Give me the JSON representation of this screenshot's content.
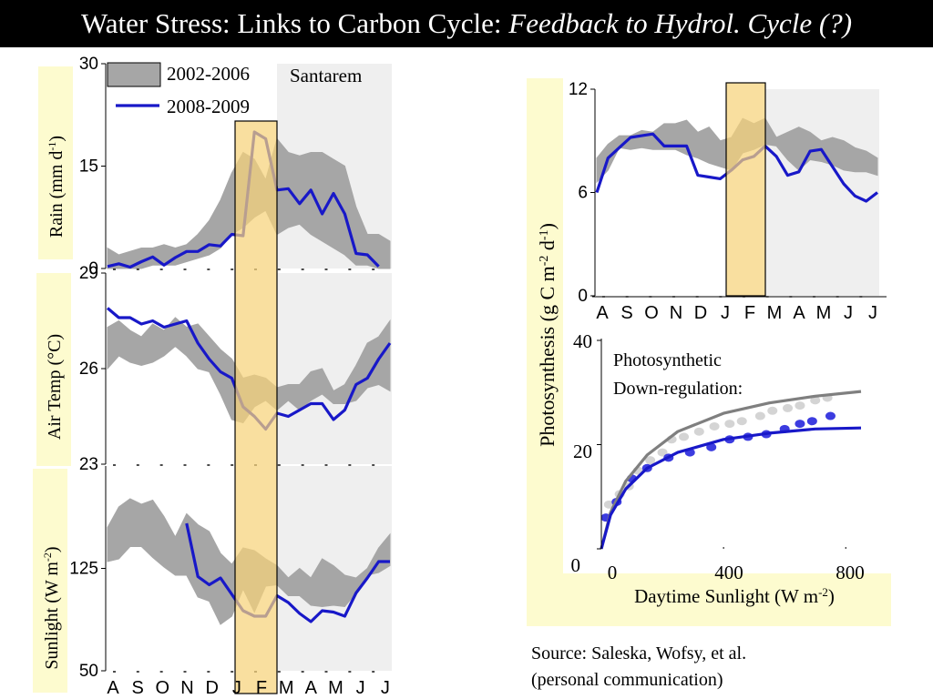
{
  "title": {
    "main": "Water Stress: Links to Carbon Cycle: ",
    "italic": "Feedback to Hydrol. Cycle (?)"
  },
  "legend": {
    "entries": [
      "2002-2006",
      "2008-2009"
    ],
    "site_label": "Santarem"
  },
  "colors": {
    "band": "#a6a6a6",
    "line": "#1818c8",
    "highlight": "#f7d27a",
    "label_bg": "#fdfbcf",
    "shade": "#efefef",
    "fit_gray": "#7f7f7f",
    "dot_gray": "#d4d4d4",
    "dot_blue": "#3c3ce0"
  },
  "source": {
    "line1": "Source: Saleska, Wofsy, et al.",
    "line2": "(personal communication)"
  },
  "chart_data": [
    {
      "id": "rain",
      "type": "area",
      "ylabel": "Rain (mm d-1)",
      "ylabel_parts": [
        "Rain (mm d",
        "-1",
        ")"
      ],
      "ylim": [
        0,
        30
      ],
      "yticks": [
        {
          "v": 30,
          "label": "30"
        },
        {
          "v": 15,
          "label": "15"
        },
        {
          "v": 0,
          "label": "0"
        }
      ],
      "x_labels": [],
      "x_step": 1,
      "x_count": 26,
      "series": [
        {
          "name": "2002-2006",
          "kind": "band",
          "upper": [
            3,
            2,
            2.5,
            3,
            3,
            3.5,
            3,
            3.5,
            5,
            7,
            10,
            14,
            17,
            16,
            13,
            19,
            17,
            16.5,
            17,
            17,
            16,
            15,
            9,
            5,
            5,
            4
          ],
          "lower": [
            0,
            0,
            0,
            0,
            0.5,
            0.5,
            0.5,
            1,
            1.5,
            2,
            3,
            5,
            6,
            7.5,
            8.5,
            5,
            6,
            6.5,
            5,
            4,
            3,
            2,
            0.5,
            0.5,
            0,
            0
          ]
        },
        {
          "name": "2008-2009",
          "kind": "line",
          "values": [
            0.3,
            0.7,
            0.2,
            1,
            1.7,
            0.5,
            1.6,
            2.5,
            2.5,
            3.5,
            3.3,
            5,
            4.8,
            20,
            19,
            11.5,
            11.7,
            9.5,
            11.5,
            8,
            11,
            8,
            2.2,
            2,
            0.3,
            null
          ]
        }
      ]
    },
    {
      "id": "airtemp",
      "type": "area",
      "ylabel": "Air Temp (°C)",
      "ylabel_parts": [
        "Air Temp (°C)",
        "",
        ""
      ],
      "ylim": [
        23,
        29
      ],
      "yticks": [
        {
          "v": 29,
          "label": "29"
        },
        {
          "v": 26,
          "label": "26"
        },
        {
          "v": 23,
          "label": "23"
        }
      ],
      "x_labels": [],
      "x_step": 0.5,
      "x_count": 26,
      "series": [
        {
          "name": "2002-2006",
          "kind": "band",
          "upper": [
            27.3,
            27.5,
            27.2,
            27.0,
            27.4,
            27.2,
            27.6,
            27.3,
            27.4,
            27.0,
            26.6,
            26.3,
            25.7,
            25.8,
            25.7,
            25.4,
            25.5,
            25.5,
            25.9,
            26.0,
            25.3,
            25.5,
            26.1,
            26.8,
            27.0,
            27.5
          ],
          "lower": [
            26.0,
            26.4,
            26.2,
            26.1,
            26.2,
            26.4,
            26.7,
            26.4,
            26.0,
            25.9,
            25.2,
            24.4,
            24.3,
            24.8,
            25.0,
            24.7,
            25.0,
            24.7,
            25.0,
            25.2,
            24.9,
            24.9,
            25.0,
            25.4,
            25.5,
            25.3
          ]
        },
        {
          "name": "2008-2009",
          "kind": "line",
          "values": [
            27.9,
            27.6,
            27.6,
            27.4,
            27.5,
            27.3,
            27.4,
            27.5,
            26.8,
            26.3,
            25.9,
            25.7,
            24.8,
            24.5,
            24.1,
            24.6,
            24.5,
            24.7,
            24.9,
            24.9,
            24.4,
            24.7,
            25.5,
            25.7,
            26.3,
            26.8
          ]
        }
      ]
    },
    {
      "id": "sunlight",
      "type": "area",
      "ylabel": "Sunlight (W m-2)",
      "ylabel_parts": [
        "Sunlight (W m",
        "-2",
        ")"
      ],
      "ylim": [
        50,
        200
      ],
      "yticks": [
        {
          "v": 125,
          "label": "125"
        },
        {
          "v": 50,
          "label": "50"
        }
      ],
      "x_labels": [
        "A",
        "S",
        "O",
        "N",
        "D",
        "J",
        "F",
        "M",
        "A",
        "M",
        "J",
        "J"
      ],
      "x_step": 1,
      "x_count": 26,
      "series": [
        {
          "name": "2002-2006",
          "kind": "band",
          "upper": [
            155,
            170,
            176,
            172,
            175,
            163,
            148,
            165,
            157,
            152,
            136,
            128,
            140,
            138,
            132,
            127,
            118,
            125,
            118,
            132,
            127,
            120,
            118,
            125,
            140,
            150
          ],
          "lower": [
            130,
            132,
            141,
            141,
            133,
            126,
            120,
            120,
            104,
            101,
            84,
            90,
            110,
            93,
            112,
            113,
            105,
            105,
            98,
            97,
            98,
            97,
            107,
            120,
            122,
            127
          ],
          "stroke_only_segment_end": 11
        },
        {
          "name": "2008-2009",
          "kind": "line",
          "values": [
            null,
            null,
            null,
            null,
            null,
            null,
            null,
            158,
            119,
            113,
            118,
            106,
            94,
            90,
            90,
            105,
            100,
            92,
            86,
            94,
            93,
            90,
            107,
            118,
            130,
            130
          ]
        }
      ]
    },
    {
      "id": "photosynthesis",
      "type": "area",
      "ylabel": "Photosynthesis (g C m-2 d-1)",
      "ylabel_parts": [
        "Photosynthesis (g C m",
        "-2",
        " d",
        "-1",
        ")"
      ],
      "ylim": [
        0,
        12
      ],
      "yticks": [
        {
          "v": 12,
          "label": "12"
        },
        {
          "v": 6,
          "label": "6"
        },
        {
          "v": 0,
          "label": "0"
        }
      ],
      "x_labels": [
        "A",
        "S",
        "O",
        "N",
        "D",
        "J",
        "F",
        "M",
        "A",
        "M",
        "J",
        "J"
      ],
      "x_count": 26,
      "series": [
        {
          "name": "2002-2006",
          "kind": "band",
          "upper": [
            8.0,
            8.8,
            9.3,
            9.3,
            9.6,
            9.5,
            10.0,
            10.0,
            10.2,
            9.5,
            9.8,
            9.0,
            9.2,
            10.3,
            10.0,
            10.3,
            9.2,
            9.5,
            9.8,
            9.5,
            9.0,
            9.2,
            9.0,
            8.6,
            8.4,
            8.0
          ],
          "lower": [
            6.6,
            7.3,
            8.6,
            8.5,
            8.6,
            8.5,
            8.5,
            8.5,
            8.2,
            8.0,
            7.7,
            7.5,
            7.3,
            8.3,
            8.5,
            8.8,
            8.7,
            7.9,
            7.3,
            7.9,
            7.8,
            7.6,
            7.3,
            7.2,
            7.2,
            7.0
          ],
          "stroke_only_segment_end": 11
        },
        {
          "name": "2008-2009",
          "kind": "line",
          "values": [
            6.0,
            8.0,
            8.6,
            9.2,
            9.3,
            9.4,
            8.7,
            8.7,
            8.7,
            7.0,
            6.9,
            6.8,
            7.3,
            7.9,
            8.1,
            8.7,
            8.1,
            7.0,
            7.2,
            8.4,
            8.5,
            7.5,
            6.5,
            5.8,
            5.5,
            6.0
          ]
        }
      ]
    },
    {
      "id": "downregulation",
      "type": "scatter",
      "annotation": [
        "Photosynthetic",
        "Down-regulation:"
      ],
      "xlabel": "Daytime Sunlight (W m-2)",
      "xlabel_parts": [
        "Daytime Sunlight (W m",
        "-2",
        ")"
      ],
      "xlim": [
        0,
        850
      ],
      "ylim": [
        0,
        40
      ],
      "xticks": [
        {
          "v": 0,
          "label": "0"
        },
        {
          "v": 400,
          "label": "400"
        },
        {
          "v": 800,
          "label": "800"
        }
      ],
      "yticks": [
        {
          "v": 40,
          "label": "40"
        },
        {
          "v": 20,
          "label": "20"
        },
        {
          "v": 0,
          "label": "0"
        }
      ],
      "series": [
        {
          "name": "2002-2006",
          "kind": "curve",
          "points": [
            [
              0,
              0
            ],
            [
              30,
              7
            ],
            [
              80,
              13
            ],
            [
              150,
              18
            ],
            [
              250,
              22.5
            ],
            [
              400,
              26
            ],
            [
              550,
              28
            ],
            [
              700,
              29.3
            ],
            [
              850,
              30.2
            ]
          ]
        },
        {
          "name": "2008-2009",
          "kind": "curve",
          "points": [
            [
              0,
              0
            ],
            [
              30,
              6.5
            ],
            [
              80,
              11.5
            ],
            [
              150,
              15.5
            ],
            [
              250,
              18.5
            ],
            [
              400,
              21
            ],
            [
              550,
              22.2
            ],
            [
              700,
              23
            ],
            [
              850,
              23.2
            ]
          ]
        },
        {
          "name": "2002-2006",
          "kind": "points",
          "points": [
            [
              25,
              8.5
            ],
            [
              60,
              10.5
            ],
            [
              90,
              12
            ],
            [
              120,
              15
            ],
            [
              160,
              17
            ],
            [
              200,
              18.5
            ],
            [
              230,
              21
            ],
            [
              270,
              21.5
            ],
            [
              320,
              22.5
            ],
            [
              370,
              23.5
            ],
            [
              420,
              24
            ],
            [
              460,
              24.5
            ],
            [
              520,
              25.5
            ],
            [
              560,
              26.5
            ],
            [
              610,
              27
            ],
            [
              650,
              27.5
            ],
            [
              700,
              28.5
            ],
            [
              740,
              29
            ]
          ]
        },
        {
          "name": "2008-2009",
          "kind": "points",
          "points": [
            [
              15,
              6
            ],
            [
              50,
              9
            ],
            [
              100,
              13.5
            ],
            [
              150,
              15.5
            ],
            [
              220,
              17.5
            ],
            [
              290,
              18.5
            ],
            [
              360,
              19.5
            ],
            [
              420,
              21
            ],
            [
              480,
              21.5
            ],
            [
              540,
              22
            ],
            [
              600,
              23
            ],
            [
              650,
              24
            ],
            [
              690,
              24.5
            ],
            [
              750,
              25.5
            ]
          ]
        }
      ]
    }
  ]
}
